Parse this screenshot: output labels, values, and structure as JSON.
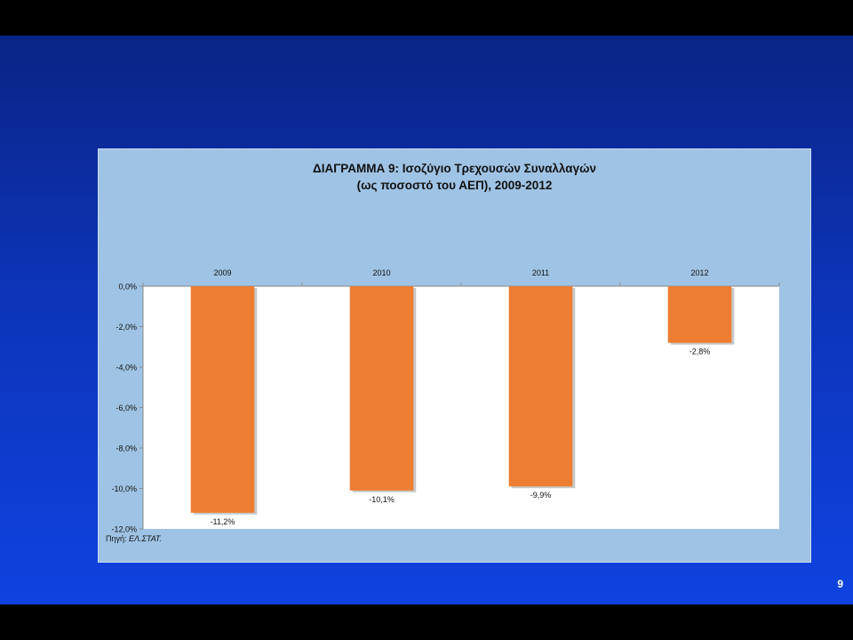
{
  "slide": {
    "page_number": "9",
    "source_label": "Πηγή:",
    "source_value": "ΕΛ.ΣΤΑΤ."
  },
  "chart_data": {
    "type": "bar",
    "title": "ΔΙΑΓΡΑΜΜΑ 9: Ισοζύγιο Τρεχουσών Συναλλαγών",
    "subtitle": "(ως ποσοστό του ΑΕΠ), 2009-2012",
    "categories": [
      "2009",
      "2010",
      "2011",
      "2012"
    ],
    "values": [
      -11.2,
      -10.1,
      -9.9,
      -2.8
    ],
    "value_labels": [
      "-11,2%",
      "-10,1%",
      "-9,9%",
      "-2,8%"
    ],
    "ylim": [
      -12,
      0
    ],
    "y_ticks": [
      0,
      -2,
      -4,
      -6,
      -8,
      -10,
      -12
    ],
    "y_tick_labels": [
      "0,0%",
      "-2,0%",
      "-4,0%",
      "-6,0%",
      "-8,0%",
      "-10,0%",
      "-12,0%"
    ],
    "xlabel": "",
    "ylabel": "",
    "x_axis_position": "top",
    "grid": false,
    "legend": "none",
    "colors": {
      "bar": "#ed7d31",
      "plot_background": "#ffffff",
      "panel_background": "#9fc3e4"
    }
  }
}
